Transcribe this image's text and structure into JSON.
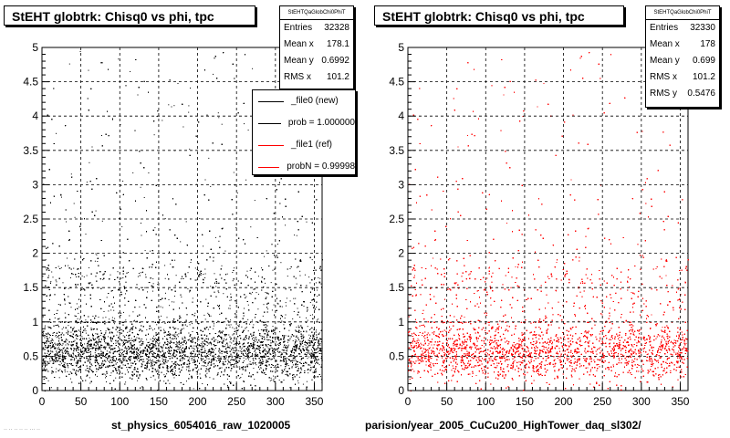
{
  "chart_data": [
    {
      "type": "scatter",
      "title": "StEHT globtrk: Chisq0 vs phi, tpc",
      "stats_header": "StEHTQaGlobChi0PhiT",
      "stats": [
        {
          "label": "Entries",
          "value": "32328"
        },
        {
          "label": "Mean x",
          "value": "178.1"
        },
        {
          "label": "Mean y",
          "value": "0.6992"
        },
        {
          "label": "RMS x",
          "value": "101.2"
        }
      ],
      "legend": [
        {
          "label": "_file0 (new)",
          "color": "#000000"
        },
        {
          "label": "prob = 1.000000",
          "color": "#000000"
        },
        {
          "label": "_file1 (ref)",
          "color": "#ff0000"
        },
        {
          "label": "probN = 0.99998",
          "color": "#ff0000"
        }
      ],
      "xlim": [
        0,
        360
      ],
      "ylim": [
        0,
        5
      ],
      "x_ticks": [
        0,
        50,
        100,
        150,
        200,
        250,
        300,
        350
      ],
      "y_ticks": [
        "0",
        "0.5",
        "1",
        "1.5",
        "2",
        "2.5",
        "3",
        "3.5",
        "4",
        "4.5",
        "5"
      ],
      "grid": true,
      "marker_color": "#000000",
      "xlabel": "st_physics_6054016_raw_1020005"
    },
    {
      "type": "scatter",
      "title": "StEHT globtrk: Chisq0 vs phi, tpc",
      "stats_header": "StEHTQaGlobChi0PhiT",
      "stats": [
        {
          "label": "Entries",
          "value": "32330"
        },
        {
          "label": "Mean x",
          "value": "178"
        },
        {
          "label": "Mean y",
          "value": "0.699"
        },
        {
          "label": "RMS x",
          "value": "101.2"
        },
        {
          "label": "RMS y",
          "value": "0.5476"
        }
      ],
      "xlim": [
        0,
        360
      ],
      "ylim": [
        0,
        5
      ],
      "x_ticks": [
        0,
        50,
        100,
        150,
        200,
        250,
        300,
        350
      ],
      "y_ticks": [
        "0",
        "0.5",
        "1",
        "1.5",
        "2",
        "2.5",
        "3",
        "3.5",
        "4",
        "4.5",
        "5"
      ],
      "grid": true,
      "marker_color": "#ff0000",
      "xlabel": "parision/year_2005_CuCu200_HighTower_daq_sl302/"
    }
  ],
  "footer_text": "·· ·· ·· ·· ·· ··· ··"
}
